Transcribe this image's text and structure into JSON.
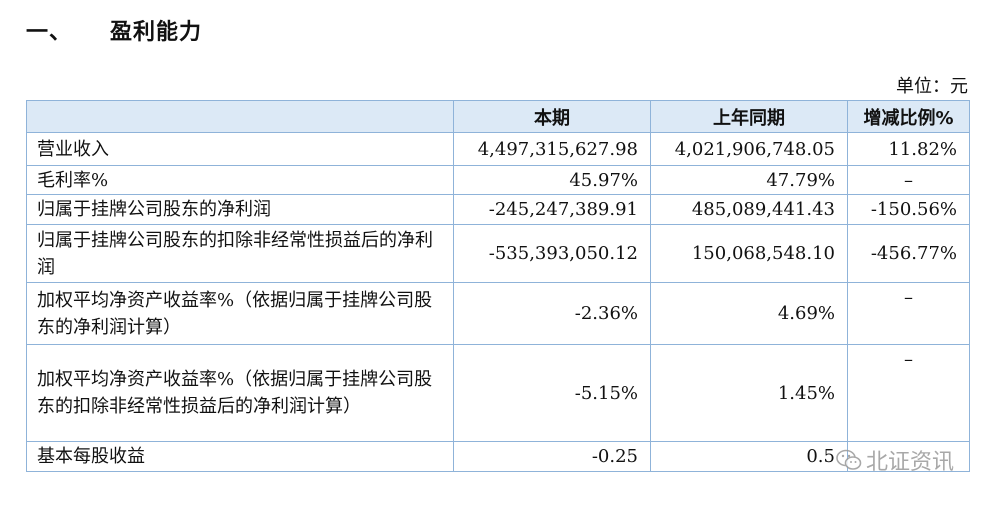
{
  "heading": {
    "number": "一、",
    "title": "盈利能力"
  },
  "unit_note": "单位：元",
  "table": {
    "columns": [
      "",
      "本期",
      "上年同期",
      "增减比例%"
    ],
    "rows": [
      {
        "label": "营业收入",
        "current": "4,497,315,627.98",
        "prior": "4,021,906,748.05",
        "change": "11.82%"
      },
      {
        "label": "毛利率%",
        "current": "45.97%",
        "prior": "47.79%",
        "change": "–"
      },
      {
        "label": "归属于挂牌公司股东的净利润",
        "current": "-245,247,389.91",
        "prior": "485,089,441.43",
        "change": "-150.56%"
      },
      {
        "label": "归属于挂牌公司股东的扣除非经常性损益后的净利润",
        "current": "-535,393,050.12",
        "prior": "150,068,548.10",
        "change": "-456.77%"
      },
      {
        "label": "加权平均净资产收益率%（依据归属于挂牌公司股东的净利润计算）",
        "current": "-2.36%",
        "prior": "4.69%",
        "change": "–"
      },
      {
        "label": "加权平均净资产收益率%（依据归属于挂牌公司股东的扣除非经常性损益后的净利润计算）",
        "current": "-5.15%",
        "prior": "1.45%",
        "change": "–"
      },
      {
        "label": "基本每股收益",
        "current": "-0.25",
        "prior": "0.5",
        "change": ""
      }
    ]
  },
  "watermark": {
    "text": "北证资讯",
    "icon": "wechat-icon"
  }
}
